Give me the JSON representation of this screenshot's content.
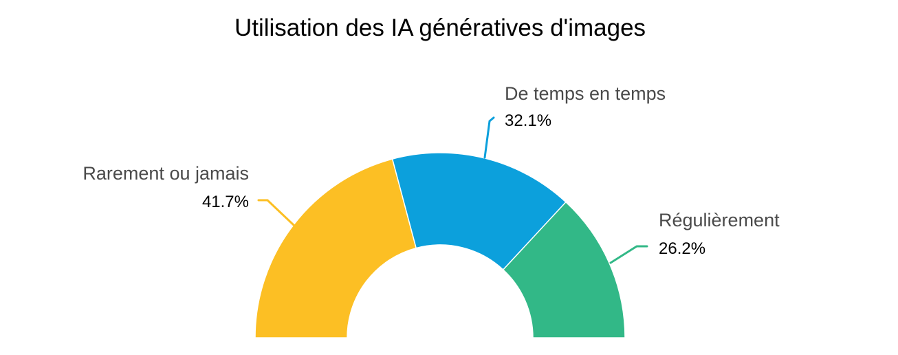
{
  "chart_data": {
    "type": "pie",
    "variant": "half-donut",
    "title": "Utilisation des IA génératives d'images",
    "slices": [
      {
        "name": "Rarement ou jamais",
        "value": 41.7,
        "value_label": "41.7%",
        "color": "#fcbf24"
      },
      {
        "name": "De temps en temps",
        "value": 32.1,
        "value_label": "32.1%",
        "color": "#0ca0dc"
      },
      {
        "name": "Régulièrement",
        "value": 26.2,
        "value_label": "26.2%",
        "color": "#32b887"
      }
    ],
    "units": "%",
    "legend": "none"
  }
}
